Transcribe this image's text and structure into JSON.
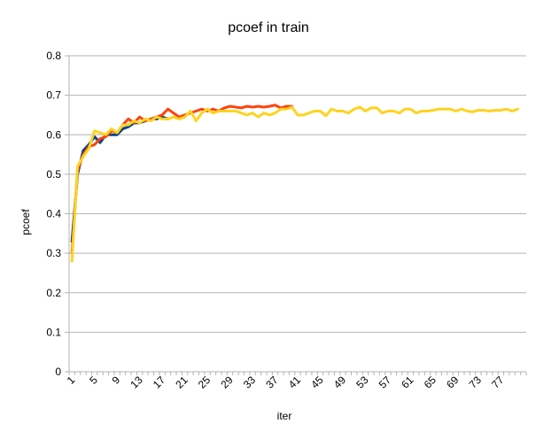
{
  "chart_data": {
    "type": "line",
    "title": "pcoef in train",
    "xlabel": "iter",
    "ylabel": "pcoef",
    "ylim": [
      0,
      0.8
    ],
    "y_ticks": [
      "0",
      "0.1",
      "0.2",
      "0.3",
      "0.4",
      "0.5",
      "0.6",
      "0.7",
      "0.8"
    ],
    "x_ticks": [
      "1",
      "5",
      "9",
      "13",
      "17",
      "21",
      "25",
      "29",
      "33",
      "37",
      "41",
      "45",
      "49",
      "53",
      "57",
      "61",
      "65",
      "69",
      "73",
      "77"
    ],
    "x_min": 1,
    "x_max": 81,
    "grid": "horizontal",
    "legend": "none",
    "series": [
      {
        "color": "#004586",
        "x_start": 1,
        "values": [
          0.33,
          0.5,
          0.56,
          0.575,
          0.595,
          0.58,
          0.6,
          0.6,
          0.6,
          0.615,
          0.62,
          0.63,
          0.63,
          0.635,
          0.64,
          0.64,
          0.645,
          0.64
        ]
      },
      {
        "color": "#ff420e",
        "x_start": 1,
        "values": [
          0.3,
          0.51,
          0.55,
          0.57,
          0.575,
          0.59,
          0.595,
          0.61,
          0.605,
          0.625,
          0.64,
          0.63,
          0.645,
          0.635,
          0.64,
          0.645,
          0.65,
          0.665,
          0.655,
          0.645,
          0.65,
          0.655,
          0.66,
          0.665,
          0.66,
          0.665,
          0.66,
          0.668,
          0.672,
          0.67,
          0.668,
          0.672,
          0.67,
          0.672,
          0.67,
          0.672,
          0.675,
          0.668,
          0.672,
          0.672
        ]
      },
      {
        "color": "#ffd320",
        "x_start": 1,
        "values": [
          0.28,
          0.52,
          0.545,
          0.565,
          0.61,
          0.605,
          0.6,
          0.615,
          0.605,
          0.625,
          0.625,
          0.635,
          0.63,
          0.64,
          0.635,
          0.645,
          0.64,
          0.64,
          0.645,
          0.64,
          0.645,
          0.66,
          0.635,
          0.655,
          0.665,
          0.655,
          0.66,
          0.66,
          0.66,
          0.66,
          0.655,
          0.65,
          0.655,
          0.645,
          0.655,
          0.65,
          0.655,
          0.665,
          0.665,
          0.67,
          0.65,
          0.65,
          0.655,
          0.66,
          0.66,
          0.648,
          0.665,
          0.66,
          0.66,
          0.655,
          0.665,
          0.67,
          0.66,
          0.668,
          0.668,
          0.655,
          0.66,
          0.66,
          0.655,
          0.665,
          0.665,
          0.655,
          0.66,
          0.66,
          0.662,
          0.665,
          0.665,
          0.665,
          0.66,
          0.665,
          0.66,
          0.658,
          0.662,
          0.662,
          0.66,
          0.662,
          0.662,
          0.665,
          0.66,
          0.665
        ]
      }
    ]
  }
}
